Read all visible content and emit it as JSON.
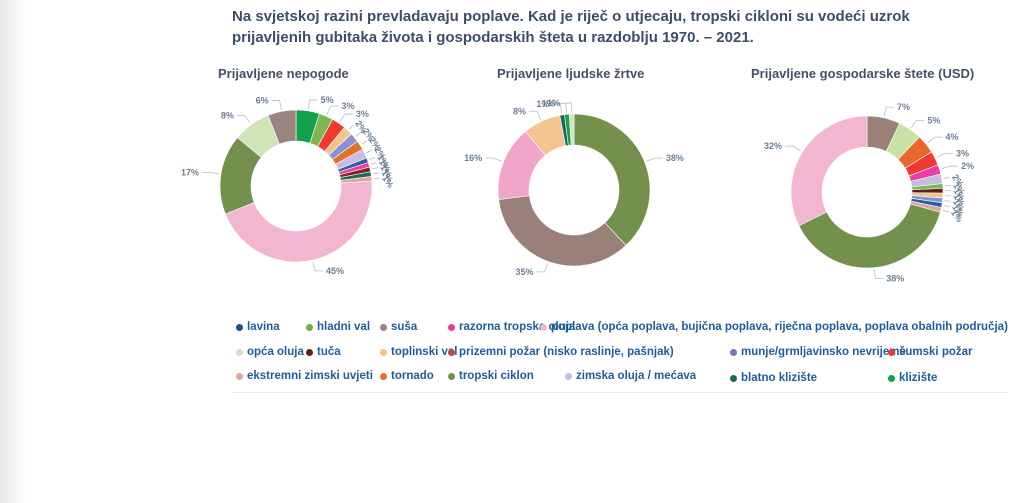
{
  "header": {
    "title": "Na svjetskoj razini prevladavaju poplave. Kad je riječ o utjecaju, tropski cikloni su vodeći uzrok prijavljenih gubitaka života i gospodarskih šteta u razdoblju 1970. – 2021."
  },
  "colors": {
    "leader_line": "#b6bdc9",
    "percent_label": "#6e7e92",
    "legend_text": "#1f5c9b",
    "title_text": "#3e4e67"
  },
  "chart_data": [
    {
      "type": "pie",
      "subtype": "donut",
      "title": "Prijavljene nepogode",
      "unit": "%",
      "legend_position": "bottom-shared",
      "slices": [
        {
          "label": "klizište",
          "value": 5,
          "color": "#14a04b",
          "rot": false
        },
        {
          "label": "hladni val",
          "value": 3,
          "color": "#7cb750",
          "rot": false
        },
        {
          "label": "šumski požar",
          "value": 3,
          "color": "#ee3a30",
          "rot": false
        },
        {
          "label": "toplinski val",
          "value": 2,
          "color": "#f5c38c",
          "rot": true
        },
        {
          "label": "munje/grmljavinsko nevrijeme",
          "value": 2,
          "color": "#8794d4",
          "rot": true
        },
        {
          "label": "tornado",
          "value": 2,
          "color": "#e2712c",
          "rot": true
        },
        {
          "label": "zimska oluja / mećava",
          "value": 2,
          "color": "#c9bbe2",
          "rot": true
        },
        {
          "label": "lavina",
          "value": 1,
          "color": "#2e5da6",
          "rot": true
        },
        {
          "label": "razorna tropska oluja",
          "value": 1,
          "color": "#e8429f",
          "rot": true
        },
        {
          "label": "tuča",
          "value": 1,
          "color": "#83242b",
          "rot": true
        },
        {
          "label": "blatno klizište",
          "value": 1,
          "color": "#1a6b55",
          "rot": true
        },
        {
          "label": "ekstremni zimski uvjeti",
          "value": 1,
          "color": "#dba89b",
          "rot": true
        },
        {
          "label": "poplava (opća poplava, bujična poplava, riječna poplava, poplava obalnih područja)",
          "value": 45,
          "color": "#f3b6d1",
          "rot": false
        },
        {
          "label": "tropski ciklon",
          "value": 17,
          "color": "#73914d",
          "rot": false
        },
        {
          "label": "opća oluja",
          "value": 8,
          "color": "#cfe5b8",
          "rot": false
        },
        {
          "label": "suša",
          "value": 6,
          "color": "#9b8580",
          "rot": false
        }
      ]
    },
    {
      "type": "pie",
      "subtype": "donut",
      "title": "Prijavljene ljudske žrtve",
      "unit": "%",
      "legend_position": "bottom-shared",
      "slices": [
        {
          "label": "tropski ciklon",
          "value": 38,
          "color": "#73914d",
          "rot": false
        },
        {
          "label": "suša",
          "value": 35,
          "color": "#998078",
          "rot": false
        },
        {
          "label": "poplava (opća poplava, bujična poplava, riječna poplava, poplava obalnih područja)",
          "value": 16,
          "color": "#f1a5c8",
          "rot": false
        },
        {
          "label": "toplinski val",
          "value": 8,
          "color": "#f4c48e",
          "rot": false
        },
        {
          "label": "blatno klizište",
          "value": 1,
          "color": "#1a6b55",
          "rot": false
        },
        {
          "label": "klizište",
          "value": 1,
          "color": "#14a04b",
          "rot": false
        },
        {
          "label": "opća oluja",
          "value": 1,
          "color": "#cfe5b8",
          "rot": false
        }
      ]
    },
    {
      "type": "pie",
      "subtype": "donut",
      "title": "Prijavljene gospodarske štete (USD)",
      "unit": "%",
      "legend_position": "bottom-shared",
      "slices": [
        {
          "label": "suša",
          "value": 7,
          "color": "#9b8176",
          "rot": false
        },
        {
          "label": "opća oluja",
          "value": 5,
          "color": "#c8e2a4",
          "rot": false
        },
        {
          "label": "tornado",
          "value": 4,
          "color": "#e4692b",
          "rot": false
        },
        {
          "label": "šumski požar",
          "value": 3,
          "color": "#f03a31",
          "rot": false
        },
        {
          "label": "razorna tropska oluja",
          "value": 2,
          "color": "#ee3da4",
          "rot": false
        },
        {
          "label": "zimska oluja / mećava",
          "value": 2,
          "color": "#c9badf",
          "rot": true
        },
        {
          "label": "hladni val",
          "value": 1,
          "color": "#7cb750",
          "rot": true
        },
        {
          "label": "tuča",
          "value": 1,
          "color": "#5d2021",
          "rot": true
        },
        {
          "label": "toplinski val",
          "value": 1,
          "color": "#f5c38c",
          "rot": true
        },
        {
          "label": "munje/grmljavinsko nevrijeme",
          "value": 1,
          "color": "#8794d4",
          "rot": true
        },
        {
          "label": "lavina",
          "value": 1,
          "color": "#2e5da6",
          "rot": true
        },
        {
          "label": "ekstremni zimski uvjeti",
          "value": 1,
          "color": "#dba89b",
          "rot": true
        },
        {
          "label": "tropski ciklon",
          "value": 38,
          "color": "#73914d",
          "rot": false
        },
        {
          "label": "poplava (opća poplava, bujična poplava, riječna poplava, poplava obalnih područja)",
          "value": 32,
          "color": "#f3b6d1",
          "rot": false
        }
      ]
    }
  ],
  "legend": {
    "rows": [
      [
        {
          "label": "lavina",
          "color": "#1f4e8f"
        },
        {
          "label": "hladni val",
          "color": "#70ad47"
        },
        {
          "label": "suša",
          "color": "#9b8580"
        },
        {
          "label": "razorna tropska oluja",
          "color": "#e0419f"
        },
        {
          "label": "poplava (opća poplava, bujična poplava, riječna poplava, poplava obalnih područja)",
          "color": "#f3b6d1"
        }
      ],
      [
        {
          "label": "opća oluja",
          "color": "#cfe5b8"
        },
        {
          "label": "tuča",
          "color": "#5d2021"
        },
        {
          "label": "toplinski val",
          "color": "#f5c38c"
        },
        {
          "label": "prizemni požar (nisko raslinje, pašnjak)",
          "color": "#b74a4b"
        },
        {
          "label": "munje/grmljavinsko nevrijeme",
          "color": "#7d74b8"
        },
        {
          "label": "šumski požar",
          "color": "#e73b30"
        }
      ],
      [
        {
          "label": "ekstremni zimski uvjeti",
          "color": "#dba89b"
        },
        {
          "label": "tornado",
          "color": "#e2712c"
        },
        {
          "label": "tropski ciklon",
          "color": "#73914d"
        },
        {
          "label": "zimska oluja / mećava",
          "color": "#c9bbe2"
        },
        {
          "label": "blatno klizište",
          "color": "#1a6b55"
        },
        {
          "label": "klizište",
          "color": "#14a04b"
        }
      ]
    ]
  }
}
